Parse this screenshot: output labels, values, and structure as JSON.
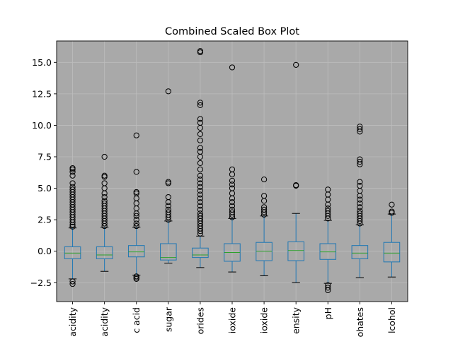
{
  "chart_data": {
    "type": "box",
    "title": "Combined Scaled Box Plot",
    "xlabel": "",
    "ylabel": "",
    "ylim": [
      -4.0,
      16.7
    ],
    "grid": true,
    "yticks": [
      -2.5,
      0.0,
      2.5,
      5.0,
      7.5,
      10.0,
      12.5,
      15.0
    ],
    "ytick_labels": [
      "−2.5",
      "0.0",
      "2.5",
      "5.0",
      "7.5",
      "10.0",
      "12.5",
      "15.0"
    ],
    "categories": [
      "acidity",
      "acidity",
      "c acid",
      "sugar",
      "orides",
      "ioxide",
      "ioxide",
      "ensity",
      "pH",
      "ohates",
      "lcohol"
    ],
    "boxes": [
      {
        "whisker_low": -2.2,
        "q1": -0.6,
        "median": -0.15,
        "q3": 0.35,
        "whisker_high": 1.85,
        "fliers": [
          -2.4,
          -2.6,
          1.95,
          2.1,
          2.3,
          2.5,
          2.7,
          2.9,
          3.1,
          3.3,
          3.5,
          3.7,
          3.9,
          4.1,
          4.3,
          4.5,
          4.7,
          4.9,
          5.1,
          5.4,
          6.0,
          6.3,
          6.5,
          6.6
        ]
      },
      {
        "whisker_low": -1.6,
        "q1": -0.6,
        "median": -0.3,
        "q3": 0.35,
        "whisker_high": 1.9,
        "fliers": [
          2.0,
          2.2,
          2.4,
          2.6,
          2.8,
          3.0,
          3.2,
          3.4,
          3.6,
          3.8,
          4.0,
          4.3,
          4.6,
          5.0,
          5.4,
          5.9,
          6.0,
          7.5
        ]
      },
      {
        "whisker_low": -1.9,
        "q1": -0.45,
        "median": -0.05,
        "q3": 0.45,
        "whisker_high": 1.9,
        "fliers": [
          -2.0,
          -2.1,
          -2.2,
          2.0,
          2.2,
          2.5,
          2.8,
          3.0,
          3.4,
          3.8,
          4.2,
          4.6,
          4.7,
          6.3,
          9.2
        ]
      },
      {
        "whisker_low": -0.95,
        "q1": -0.7,
        "median": -0.5,
        "q3": 0.6,
        "whisker_high": 2.4,
        "fliers": [
          2.5,
          2.7,
          2.9,
          3.1,
          3.3,
          3.6,
          3.9,
          4.3,
          5.4,
          5.5,
          12.7
        ]
      },
      {
        "whisker_low": -1.3,
        "q1": -0.5,
        "median": -0.3,
        "q3": 0.25,
        "whisker_high": 1.2,
        "fliers": [
          1.4,
          1.6,
          1.8,
          2.0,
          2.2,
          2.4,
          2.6,
          2.8,
          3.0,
          3.3,
          3.6,
          3.9,
          4.2,
          4.5,
          4.8,
          5.1,
          5.4,
          5.7,
          6.0,
          6.5,
          7.0,
          7.5,
          7.9,
          8.2,
          8.8,
          9.3,
          9.8,
          10.2,
          10.5,
          11.6,
          11.8,
          15.8,
          15.9
        ]
      },
      {
        "whisker_low": -1.65,
        "q1": -0.8,
        "median": -0.1,
        "q3": 0.6,
        "whisker_high": 2.6,
        "fliers": [
          2.7,
          2.9,
          3.1,
          3.3,
          3.6,
          3.9,
          4.2,
          4.6,
          5.0,
          5.3,
          5.6,
          6.1,
          6.5,
          14.6
        ]
      },
      {
        "whisker_low": -1.95,
        "q1": -0.75,
        "median": 0.0,
        "q3": 0.7,
        "whisker_high": 2.8,
        "fliers": [
          2.9,
          3.1,
          3.3,
          3.5,
          4.0,
          4.4,
          5.7
        ]
      },
      {
        "whisker_low": -2.5,
        "q1": -0.75,
        "median": 0.05,
        "q3": 0.75,
        "whisker_high": 3.0,
        "fliers": [
          5.2,
          5.25,
          14.8
        ]
      },
      {
        "whisker_low": -2.55,
        "q1": -0.65,
        "median": -0.05,
        "q3": 0.6,
        "whisker_high": 2.45,
        "fliers": [
          -2.7,
          -2.9,
          -3.1,
          2.6,
          2.8,
          3.0,
          3.2,
          3.4,
          3.7,
          4.1,
          4.5,
          4.9
        ]
      },
      {
        "whisker_low": -2.1,
        "q1": -0.6,
        "median": -0.15,
        "q3": 0.45,
        "whisker_high": 2.1,
        "fliers": [
          2.2,
          2.4,
          2.6,
          2.8,
          3.0,
          3.2,
          3.5,
          3.8,
          4.1,
          4.4,
          4.8,
          5.2,
          5.5,
          6.9,
          7.1,
          7.3,
          9.5,
          9.7,
          9.9
        ]
      },
      {
        "whisker_low": -2.05,
        "q1": -0.85,
        "median": -0.15,
        "q3": 0.7,
        "whisker_high": 2.95,
        "fliers": [
          3.05,
          3.15,
          3.7
        ]
      }
    ],
    "colors": {
      "plot_background": "#a9a9a9",
      "box": "#1f77b4",
      "median": "#2ca02c",
      "whisker": "#1f77b4",
      "flier": "#000000",
      "grid": "#bdbdbd"
    }
  }
}
